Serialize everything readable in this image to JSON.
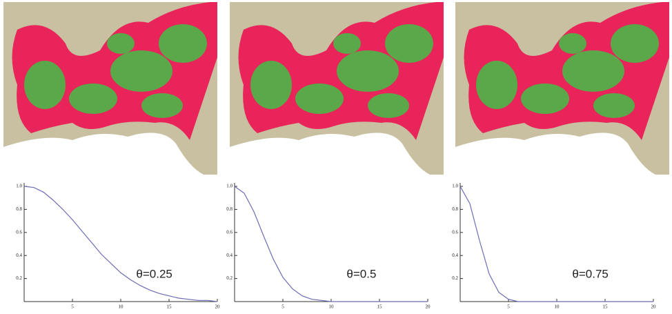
{
  "chart_data": [
    {
      "type": "line",
      "annotation": "θ=0.25",
      "color": "#6b6bb5",
      "x": [
        0,
        1,
        2,
        3,
        4,
        5,
        6,
        7,
        8,
        9,
        10,
        11,
        12,
        13,
        14,
        15,
        16,
        17,
        18,
        19,
        20
      ],
      "values": [
        1,
        0.99,
        0.95,
        0.88,
        0.8,
        0.71,
        0.61,
        0.51,
        0.41,
        0.33,
        0.25,
        0.19,
        0.14,
        0.1,
        0.07,
        0.05,
        0.03,
        0.02,
        0.01,
        0.01,
        0
      ],
      "xlim": [
        0,
        20
      ],
      "ylim": [
        0,
        1.03
      ],
      "xticks": [
        5,
        10,
        15,
        20
      ],
      "yticks": [
        0.2,
        0.4,
        0.6,
        0.8,
        {
          "value": 1,
          "label": "1.0"
        }
      ]
    },
    {
      "type": "line",
      "annotation": "θ=0.5",
      "color": "#6b6bb5",
      "x": [
        0,
        1,
        2,
        3,
        4,
        5,
        6,
        7,
        8,
        9,
        10,
        11,
        12,
        13,
        14,
        15,
        16,
        17,
        18,
        19,
        20
      ],
      "values": [
        1,
        0.94,
        0.78,
        0.57,
        0.37,
        0.21,
        0.11,
        0.05,
        0.02,
        0.01,
        0,
        0,
        0,
        0,
        0,
        0,
        0,
        0,
        0,
        0,
        0
      ],
      "xlim": [
        0,
        20
      ],
      "ylim": [
        0,
        1.03
      ],
      "xticks": [
        5,
        10,
        15,
        20
      ],
      "yticks": [
        0.2,
        0.4,
        0.6,
        0.8,
        {
          "value": 1,
          "label": "1.0"
        }
      ]
    },
    {
      "type": "line",
      "annotation": "θ=0.75",
      "color": "#6b6bb5",
      "x": [
        0,
        1,
        2,
        3,
        4,
        5,
        6,
        7,
        8,
        9,
        10,
        11,
        12,
        13,
        14,
        15,
        16,
        17,
        18,
        19,
        20
      ],
      "values": [
        1,
        0.85,
        0.53,
        0.24,
        0.08,
        0.02,
        0,
        0,
        0,
        0,
        0,
        0,
        0,
        0,
        0,
        0,
        0,
        0,
        0,
        0,
        0
      ],
      "xlim": [
        0,
        20
      ],
      "ylim": [
        0,
        1.03
      ],
      "xticks": [
        5,
        10,
        15,
        20
      ],
      "yticks": [
        0.2,
        0.4,
        0.6,
        0.8,
        {
          "value": 1,
          "label": "1.0"
        }
      ]
    }
  ]
}
